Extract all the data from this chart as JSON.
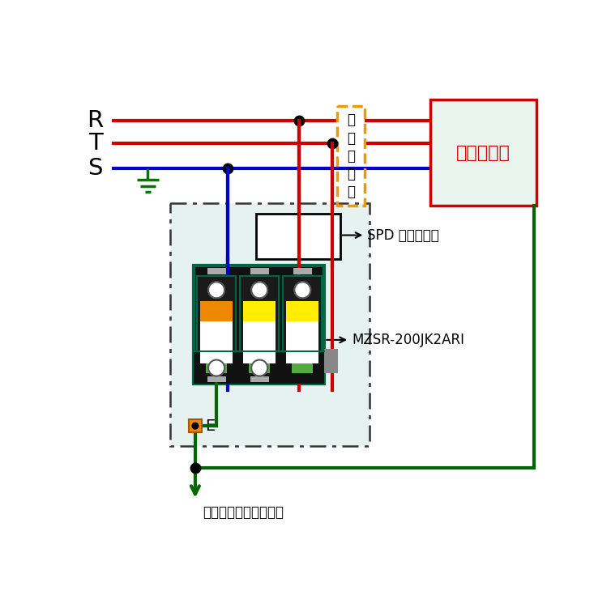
{
  "bg_color": "#ffffff",
  "red_wire": "#cc0000",
  "blue_wire": "#0000cc",
  "green_wire": "#006600",
  "green_earth": "#007700",
  "teal_spd": "#006644",
  "yellow_color": "#ffee00",
  "orange_color": "#ee8800",
  "green_ind": "#55aa44",
  "leidan_box_color": "#ee9900",
  "protected_box_edge": "#cc0000",
  "protected_bg": "#eaf4ee",
  "spd_enc_bg": "#e6f2f0",
  "spd_body_dark": "#111111",
  "gray_side": "#888888",
  "gray_strip": "#aaaaaa",
  "label_R": "R",
  "label_T": "T",
  "label_S": "S",
  "label_leidan": "漏\n電\n遗\n断\n器",
  "label_protected": "被保護機器",
  "label_spd": "SPD 外部分離器",
  "label_mzsr": "MZSR-200JK2ARI",
  "label_E": "E",
  "label_bonding": "ボンディング用バーへ"
}
